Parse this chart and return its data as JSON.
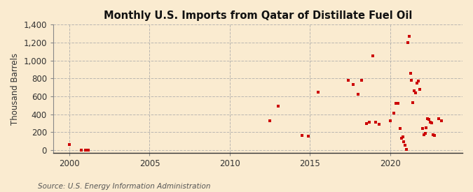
{
  "title": "Monthly U.S. Imports from Qatar of Distillate Fuel Oil",
  "ylabel": "Thousand Barrels",
  "source": "Source: U.S. Energy Information Administration",
  "background_color": "#faebd0",
  "plot_background_color": "#faebd0",
  "marker_color": "#cc0000",
  "marker_size": 8,
  "xlim": [
    1999.0,
    2024.5
  ],
  "ylim": [
    -30,
    1400
  ],
  "yticks": [
    0,
    200,
    400,
    600,
    800,
    1000,
    1200,
    1400
  ],
  "xticks": [
    2000,
    2005,
    2010,
    2015,
    2020
  ],
  "data_points": [
    [
      2000.0,
      60
    ],
    [
      2000.75,
      0
    ],
    [
      2001.0,
      0
    ],
    [
      2001.2,
      0
    ],
    [
      2012.5,
      325
    ],
    [
      2013.0,
      490
    ],
    [
      2014.5,
      160
    ],
    [
      2014.9,
      155
    ],
    [
      2015.5,
      650
    ],
    [
      2017.4,
      780
    ],
    [
      2017.7,
      730
    ],
    [
      2018.0,
      620
    ],
    [
      2018.2,
      780
    ],
    [
      2018.5,
      295
    ],
    [
      2018.7,
      310
    ],
    [
      2018.9,
      1050
    ],
    [
      2019.1,
      310
    ],
    [
      2019.3,
      285
    ],
    [
      2020.0,
      330
    ],
    [
      2020.2,
      415
    ],
    [
      2020.35,
      525
    ],
    [
      2020.5,
      525
    ],
    [
      2020.6,
      240
    ],
    [
      2020.7,
      130
    ],
    [
      2020.78,
      145
    ],
    [
      2020.85,
      90
    ],
    [
      2020.92,
      55
    ],
    [
      2021.0,
      10
    ],
    [
      2021.08,
      1200
    ],
    [
      2021.17,
      1270
    ],
    [
      2021.25,
      860
    ],
    [
      2021.33,
      780
    ],
    [
      2021.42,
      530
    ],
    [
      2021.5,
      660
    ],
    [
      2021.58,
      640
    ],
    [
      2021.67,
      750
    ],
    [
      2021.75,
      770
    ],
    [
      2021.83,
      680
    ],
    [
      2022.0,
      240
    ],
    [
      2022.08,
      170
    ],
    [
      2022.17,
      190
    ],
    [
      2022.25,
      245
    ],
    [
      2022.33,
      350
    ],
    [
      2022.42,
      340
    ],
    [
      2022.5,
      310
    ],
    [
      2022.58,
      305
    ],
    [
      2022.67,
      170
    ],
    [
      2022.75,
      165
    ],
    [
      2023.0,
      350
    ],
    [
      2023.17,
      325
    ]
  ]
}
